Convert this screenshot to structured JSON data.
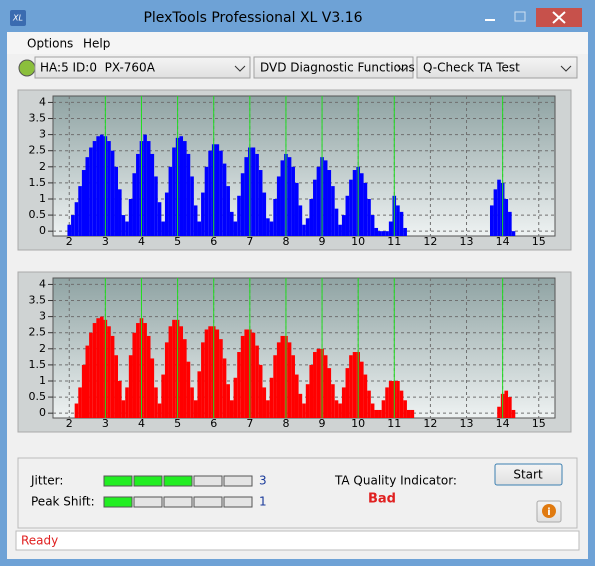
{
  "window": {
    "title": "PlexTools Professional XL V3.16",
    "icon_text": "XL"
  },
  "menu": [
    "Options",
    "Help"
  ],
  "toolbar": {
    "drive": "HA:5 ID:0  PX-760A",
    "function": "DVD Diagnostic Functions",
    "test": "Q-Check TA Test"
  },
  "charts": [
    {
      "type": "bar",
      "color": "#0000ff",
      "marker_color": "#22dd22",
      "xlim": [
        1.55,
        15.45
      ],
      "ylim": [
        -0.15,
        4.2
      ],
      "xticks": [
        2,
        3,
        4,
        5,
        6,
        7,
        8,
        9,
        10,
        11,
        12,
        13,
        14,
        15
      ],
      "yticks": [
        0,
        0.5,
        1,
        1.5,
        2,
        2.5,
        3,
        3.5,
        4
      ],
      "grid": true,
      "markers": [
        3,
        4,
        5,
        6,
        7,
        8,
        9,
        10,
        11,
        14
      ],
      "x": [
        2,
        2.1,
        2.2,
        2.3,
        2.4,
        2.5,
        2.6,
        2.7,
        2.8,
        2.9,
        3,
        3.1,
        3.2,
        3.3,
        3.4,
        3.5,
        3.6,
        3.7,
        3.8,
        3.9,
        4,
        4.1,
        4.2,
        4.3,
        4.4,
        4.5,
        4.6,
        4.7,
        4.8,
        4.9,
        5,
        5.1,
        5.2,
        5.3,
        5.4,
        5.5,
        5.6,
        5.7,
        5.8,
        5.9,
        6,
        6.1,
        6.2,
        6.3,
        6.4,
        6.5,
        6.6,
        6.7,
        6.8,
        6.9,
        7,
        7.1,
        7.2,
        7.3,
        7.4,
        7.5,
        7.6,
        7.7,
        7.8,
        7.9,
        8,
        8.1,
        8.2,
        8.3,
        8.4,
        8.5,
        8.6,
        8.7,
        8.8,
        8.9,
        9,
        9.1,
        9.2,
        9.3,
        9.4,
        9.5,
        9.6,
        9.7,
        9.8,
        9.9,
        10,
        10.1,
        10.2,
        10.3,
        10.4,
        10.5,
        10.6,
        10.7,
        10.8,
        10.9,
        11,
        11.1,
        11.2,
        11.3,
        13.7,
        13.8,
        13.9,
        14,
        14.1,
        14.2,
        14.3
      ],
      "values": [
        0.2,
        0.5,
        0.9,
        1.4,
        1.9,
        2.3,
        2.6,
        2.8,
        2.95,
        3.0,
        2.95,
        2.8,
        2.5,
        2.0,
        1.3,
        0.5,
        0.3,
        1.0,
        1.8,
        2.4,
        2.8,
        3.0,
        2.8,
        2.4,
        1.7,
        0.9,
        0.3,
        1.2,
        2.0,
        2.6,
        2.9,
        2.95,
        2.8,
        2.4,
        1.7,
        0.8,
        0.3,
        1.2,
        2.0,
        2.5,
        2.7,
        2.7,
        2.5,
        2.1,
        1.4,
        0.6,
        0.3,
        1.1,
        1.8,
        2.3,
        2.6,
        2.6,
        2.4,
        1.9,
        1.2,
        0.4,
        0.3,
        1.0,
        1.7,
        2.2,
        2.4,
        2.3,
        2.0,
        1.5,
        0.8,
        0.2,
        0.4,
        1.0,
        1.6,
        2.0,
        2.3,
        2.2,
        1.9,
        1.4,
        0.7,
        0.2,
        0.5,
        1.1,
        1.6,
        1.9,
        2.0,
        1.8,
        1.5,
        1.0,
        0.5,
        0.1,
        0,
        0,
        0,
        0.3,
        1.1,
        0.8,
        0.6,
        0.1,
        0.8,
        1.3,
        1.6,
        1.5,
        1.0,
        0.6,
        0
      ]
    },
    {
      "type": "bar",
      "color": "#ff0000",
      "marker_color": "#22dd22",
      "xlim": [
        1.55,
        15.45
      ],
      "ylim": [
        -0.15,
        4.2
      ],
      "xticks": [
        2,
        3,
        4,
        5,
        6,
        7,
        8,
        9,
        10,
        11,
        12,
        13,
        14,
        15
      ],
      "yticks": [
        0,
        0.5,
        1,
        1.5,
        2,
        2.5,
        3,
        3.5,
        4
      ],
      "grid": true,
      "markers": [
        3,
        4,
        5,
        6,
        7,
        8,
        9,
        10,
        11,
        14
      ],
      "x": [
        2.2,
        2.3,
        2.4,
        2.5,
        2.6,
        2.7,
        2.8,
        2.9,
        3,
        3.1,
        3.2,
        3.3,
        3.4,
        3.5,
        3.6,
        3.7,
        3.8,
        3.9,
        4,
        4.1,
        4.2,
        4.3,
        4.4,
        4.5,
        4.6,
        4.7,
        4.8,
        4.9,
        5,
        5.1,
        5.2,
        5.3,
        5.4,
        5.5,
        5.6,
        5.7,
        5.8,
        5.9,
        6,
        6.1,
        6.2,
        6.3,
        6.4,
        6.5,
        6.6,
        6.7,
        6.8,
        6.9,
        7,
        7.1,
        7.2,
        7.3,
        7.4,
        7.5,
        7.6,
        7.7,
        7.8,
        7.9,
        8,
        8.1,
        8.2,
        8.3,
        8.4,
        8.5,
        8.6,
        8.7,
        8.8,
        8.9,
        9,
        9.1,
        9.2,
        9.3,
        9.4,
        9.5,
        9.6,
        9.7,
        9.8,
        9.9,
        10,
        10.1,
        10.2,
        10.3,
        10.4,
        10.5,
        10.6,
        10.7,
        10.8,
        10.9,
        11,
        11.1,
        11.2,
        11.3,
        11.4,
        11.5,
        13.9,
        14,
        14.1,
        14.2,
        14.3
      ],
      "values": [
        0.3,
        0.8,
        1.5,
        2.1,
        2.5,
        2.8,
        2.95,
        3.0,
        2.9,
        2.7,
        2.4,
        1.8,
        1.0,
        0.4,
        0.8,
        1.8,
        2.5,
        2.8,
        2.95,
        2.8,
        2.4,
        1.7,
        0.8,
        0.3,
        1.2,
        2.2,
        2.7,
        2.9,
        2.9,
        2.7,
        2.3,
        1.6,
        0.8,
        0.4,
        1.3,
        2.2,
        2.6,
        2.7,
        2.7,
        2.6,
        2.3,
        1.7,
        0.9,
        0.4,
        1.1,
        1.9,
        2.4,
        2.6,
        2.6,
        2.5,
        2.1,
        1.5,
        0.8,
        0.4,
        1.1,
        1.8,
        2.2,
        2.4,
        2.4,
        2.2,
        1.8,
        1.2,
        0.6,
        0.3,
        0.9,
        1.5,
        1.9,
        2.0,
        2.0,
        1.8,
        1.4,
        0.9,
        0.4,
        0.3,
        0.8,
        1.4,
        1.8,
        1.9,
        1.9,
        1.6,
        1.2,
        0.7,
        0.3,
        0.1,
        0.1,
        0.4,
        0.8,
        1.0,
        1.0,
        1.0,
        0.7,
        0.4,
        0.1,
        0.1,
        0.2,
        0.6,
        0.7,
        0.5,
        0.1
      ]
    }
  ],
  "metrics": [
    {
      "label": "Jitter:",
      "value": 3
    },
    {
      "label": "Peak Shift:",
      "value": 1
    }
  ],
  "quality": {
    "label": "TA Quality Indicator:",
    "value": "Bad"
  },
  "start": "Start",
  "status": "Ready"
}
